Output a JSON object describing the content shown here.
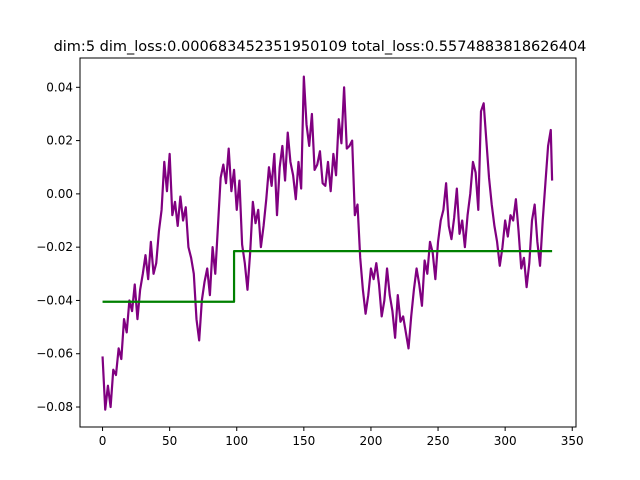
{
  "chart_data": {
    "type": "line",
    "title": "dim:5 dim_loss:0.000683452351950109 total_loss:0.5574883818626404",
    "xlabel": "",
    "ylabel": "",
    "xlim": [
      -16.8,
      352.8
    ],
    "ylim": [
      -0.0875,
      0.051
    ],
    "xticks": [
      0,
      50,
      100,
      150,
      200,
      250,
      300,
      350
    ],
    "xtick_labels": [
      "0",
      "50",
      "100",
      "150",
      "200",
      "250",
      "300",
      "350"
    ],
    "yticks": [
      -0.08,
      -0.06,
      -0.04,
      -0.02,
      0.0,
      0.02,
      0.04
    ],
    "ytick_labels": [
      "−0.08",
      "−0.06",
      "−0.04",
      "−0.02",
      "0.00",
      "0.02",
      "0.04"
    ],
    "grid": false,
    "series": [
      {
        "color": "#800080",
        "x": [
          0,
          2,
          4,
          6,
          8,
          10,
          12,
          14,
          16,
          18,
          20,
          22,
          24,
          26,
          28,
          30,
          32,
          34,
          36,
          38,
          40,
          42,
          44,
          46,
          48,
          50,
          52,
          54,
          56,
          58,
          60,
          62,
          64,
          66,
          68,
          70,
          72,
          74,
          76,
          78,
          80,
          82,
          84,
          86,
          88,
          90,
          92,
          94,
          96,
          98,
          100,
          102,
          104,
          106,
          108,
          110,
          112,
          114,
          116,
          118,
          120,
          122,
          124,
          126,
          128,
          130,
          132,
          134,
          136,
          138,
          140,
          142,
          144,
          146,
          148,
          150,
          152,
          154,
          156,
          158,
          160,
          162,
          164,
          166,
          168,
          170,
          172,
          174,
          176,
          178,
          180,
          182,
          184,
          186,
          188,
          190,
          192,
          194,
          196,
          198,
          200,
          202,
          204,
          206,
          208,
          210,
          212,
          214,
          216,
          218,
          220,
          222,
          224,
          226,
          228,
          230,
          232,
          234,
          236,
          238,
          240,
          242,
          244,
          246,
          248,
          250,
          252,
          254,
          256,
          258,
          260,
          262,
          264,
          266,
          268,
          270,
          272,
          274,
          276,
          278,
          280,
          282,
          284,
          286,
          288,
          290,
          292,
          294,
          296,
          298,
          300,
          302,
          304,
          306,
          308,
          310,
          312,
          314,
          316,
          318,
          320,
          322,
          324,
          326,
          328,
          330,
          332,
          334,
          335
        ],
        "y": [
          -0.061,
          -0.081,
          -0.072,
          -0.08,
          -0.066,
          -0.068,
          -0.058,
          -0.062,
          -0.047,
          -0.052,
          -0.04,
          -0.044,
          -0.034,
          -0.047,
          -0.036,
          -0.03,
          -0.023,
          -0.032,
          -0.018,
          -0.03,
          -0.026,
          -0.014,
          -0.006,
          0.012,
          0.001,
          0.015,
          -0.008,
          -0.003,
          -0.012,
          -0.001,
          -0.01,
          -0.005,
          -0.02,
          -0.024,
          -0.03,
          -0.047,
          -0.055,
          -0.04,
          -0.033,
          -0.028,
          -0.038,
          -0.02,
          -0.03,
          -0.012,
          0.006,
          0.011,
          0.004,
          0.017,
          0.001,
          0.009,
          -0.006,
          0.005,
          -0.019,
          -0.026,
          -0.036,
          -0.022,
          -0.003,
          -0.011,
          -0.006,
          -0.02,
          -0.012,
          -0.002,
          0.01,
          0.003,
          0.015,
          -0.008,
          0.01,
          0.018,
          0.005,
          0.023,
          0.012,
          0.007,
          -0.002,
          0.012,
          0.002,
          0.044,
          0.026,
          0.018,
          0.03,
          0.009,
          0.011,
          0.016,
          0.004,
          0.003,
          0.012,
          0.001,
          0.015,
          0.007,
          0.028,
          0.019,
          0.04,
          0.017,
          0.018,
          0.02,
          -0.008,
          -0.004,
          -0.024,
          -0.036,
          -0.045,
          -0.038,
          -0.028,
          -0.032,
          -0.026,
          -0.034,
          -0.046,
          -0.04,
          -0.028,
          -0.038,
          -0.044,
          -0.054,
          -0.038,
          -0.048,
          -0.046,
          -0.052,
          -0.058,
          -0.046,
          -0.036,
          -0.028,
          -0.034,
          -0.042,
          -0.025,
          -0.03,
          -0.018,
          -0.022,
          -0.032,
          -0.018,
          -0.01,
          -0.006,
          0.004,
          -0.012,
          -0.017,
          -0.009,
          0.002,
          -0.015,
          -0.01,
          -0.02,
          -0.008,
          0.0,
          0.012,
          0.008,
          -0.006,
          0.031,
          0.034,
          0.02,
          0.006,
          -0.004,
          -0.012,
          -0.018,
          -0.027,
          -0.02,
          -0.01,
          -0.016,
          -0.008,
          -0.01,
          -0.002,
          -0.014,
          -0.028,
          -0.024,
          -0.035,
          -0.026,
          -0.01,
          -0.004,
          -0.018,
          -0.027,
          -0.01,
          0.004,
          0.018,
          0.024,
          0.005
        ]
      },
      {
        "color": "#008000",
        "x": [
          0,
          98,
          98,
          335
        ],
        "y": [
          -0.0405,
          -0.0405,
          -0.0215,
          -0.0215
        ]
      }
    ]
  }
}
